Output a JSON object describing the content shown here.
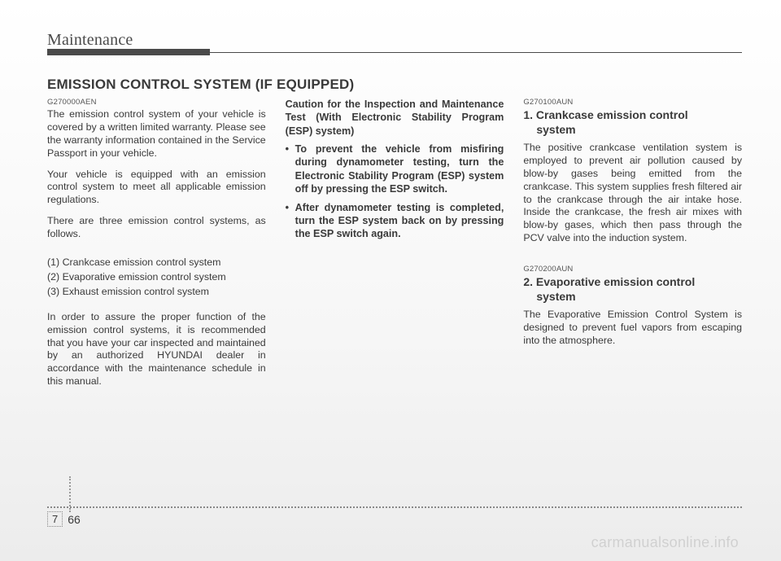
{
  "header": {
    "section": "Maintenance"
  },
  "title": "EMISSION CONTROL SYSTEM (IF EQUIPPED)",
  "col1": {
    "code": "G270000AEN",
    "p1": "The emission control system of your vehicle is covered by a written limited warranty. Please see the warranty information contained in the Service Passport in your vehicle.",
    "p2": "Your vehicle is equipped with an emission control system to meet all applicable emission regulations.",
    "p3": "There are three emission control systems, as follows.",
    "list1": "(1) Crankcase emission control system",
    "list2": "(2) Evaporative emission control system",
    "list3": "(3) Exhaust emission control system",
    "p4": "In order to assure the proper function of the emission control systems, it is recommended that you have your car inspected and maintained by an authorized HYUNDAI dealer in accordance with the maintenance schedule in this manual."
  },
  "col2": {
    "head": "Caution for the Inspection and Maintenance Test (With Electronic Stability Program (ESP) system)",
    "b1": "To prevent the vehicle from misfiring during dynamometer testing, turn the Electronic Stability Program (ESP) system off by pressing the ESP switch.",
    "b2": "After dynamometer testing is completed, turn the ESP system back on by pressing the ESP switch again."
  },
  "col3": {
    "s1_code": "G270100AUN",
    "s1_num": "1. ",
    "s1_title_a": "Crankcase emission control",
    "s1_title_b": "system",
    "s1_p": "The positive crankcase ventilation system is employed to prevent air pollution caused by blow-by gases being emitted from the crankcase. This system supplies fresh filtered air to the crankcase through the air intake hose. Inside the crankcase, the fresh air mixes with blow-by gases, which then pass through the PCV valve into the induction system.",
    "s2_code": "G270200AUN",
    "s2_num": "2. ",
    "s2_title_a": "Evaporative emission control",
    "s2_title_b": "system",
    "s2_p": "The Evaporative Emission Control System is designed to prevent fuel vapors from escaping into the atmosphere."
  },
  "footer": {
    "chapter": "7",
    "page": "66"
  },
  "watermark": "carmanualsonline.info",
  "colors": {
    "text": "#3a3a3a",
    "rule": "#4a4a4a",
    "dotted": "#888888",
    "watermark": "rgba(0,0,0,0.12)",
    "bg_top": "#ffffff",
    "bg_bottom": "#ececec"
  }
}
